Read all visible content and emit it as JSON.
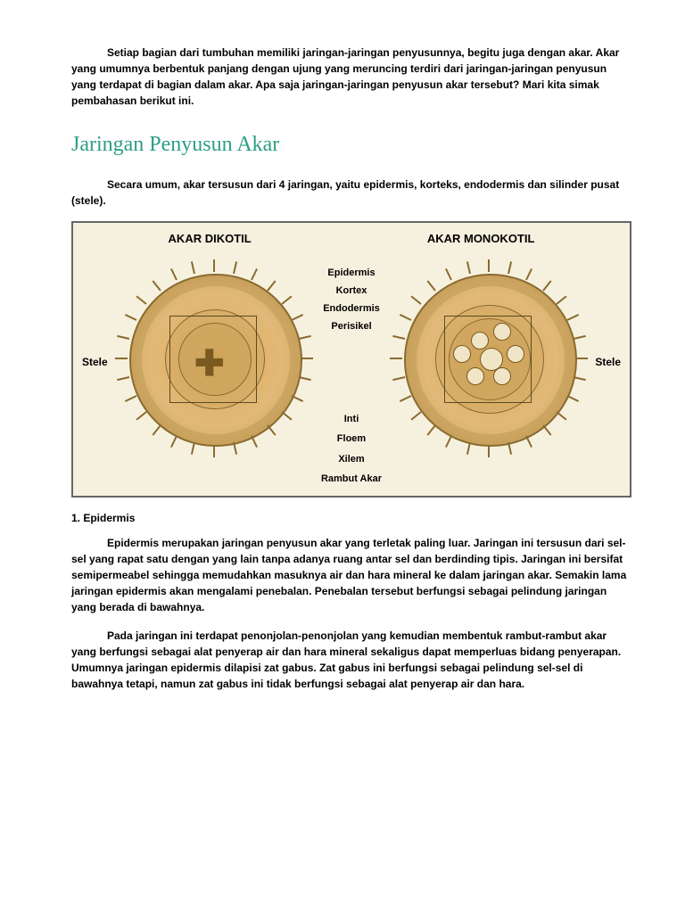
{
  "intro": "Setiap bagian dari tumbuhan memiliki jaringan-jaringan penyusunnya, begitu juga dengan akar. Akar yang umumnya berbentuk panjang dengan ujung yang meruncing terdiri dari jaringan-jaringan penyusun yang terdapat di bagian dalam akar. Apa saja jaringan-jaringan penyusun akar tersebut? Mari kita simak pembahasan berikut ini.",
  "title": "Jaringan Penyusun Akar",
  "summary": "Secara umum, akar tersusun dari 4 jaringan, yaitu epidermis, korteks, endodermis dan silinder pusat (stele).",
  "diagram": {
    "left_head": "AKAR DIKOTIL",
    "right_head": "AKAR MONOKOTIL",
    "mid_labels": [
      "Epidermis",
      "Kortex",
      "Endodermis",
      "Perisikel"
    ],
    "bottom_labels": [
      "Inti",
      "Floem",
      "Xilem"
    ],
    "side_label": "Stele",
    "rambut": "Rambut Akar",
    "colors": {
      "frame_bg": "#f6f1df",
      "cell_fill": "#e2b978",
      "cell_border": "#8a6a2e",
      "title_color": "#2e9e84"
    }
  },
  "section1_head": "1. Epidermis",
  "section1_p1": "Epidermis merupakan jaringan penyusun akar yang terletak paling luar. Jaringan ini tersusun dari sel-sel yang rapat satu dengan yang lain tanpa adanya ruang antar sel dan berdinding tipis. Jaringan ini bersifat semipermeabel sehingga memudahkan masuknya air dan hara mineral ke dalam jaringan akar. Semakin lama jaringan epidermis akan mengalami penebalan. Penebalan tersebut berfungsi sebagai pelindung jaringan yang berada di bawahnya.",
  "section1_p2": "Pada jaringan ini terdapat penonjolan-penonjolan yang kemudian membentuk rambut-rambut akar yang berfungsi sebagai alat penyerap air dan hara mineral sekaligus dapat memperluas bidang penyerapan. Umumnya jaringan epidermis dilapisi zat gabus. Zat gabus ini berfungsi sebagai pelindung sel-sel di bawahnya tetapi, namun zat gabus ini tidak berfungsi sebagai alat penyerap air dan hara."
}
